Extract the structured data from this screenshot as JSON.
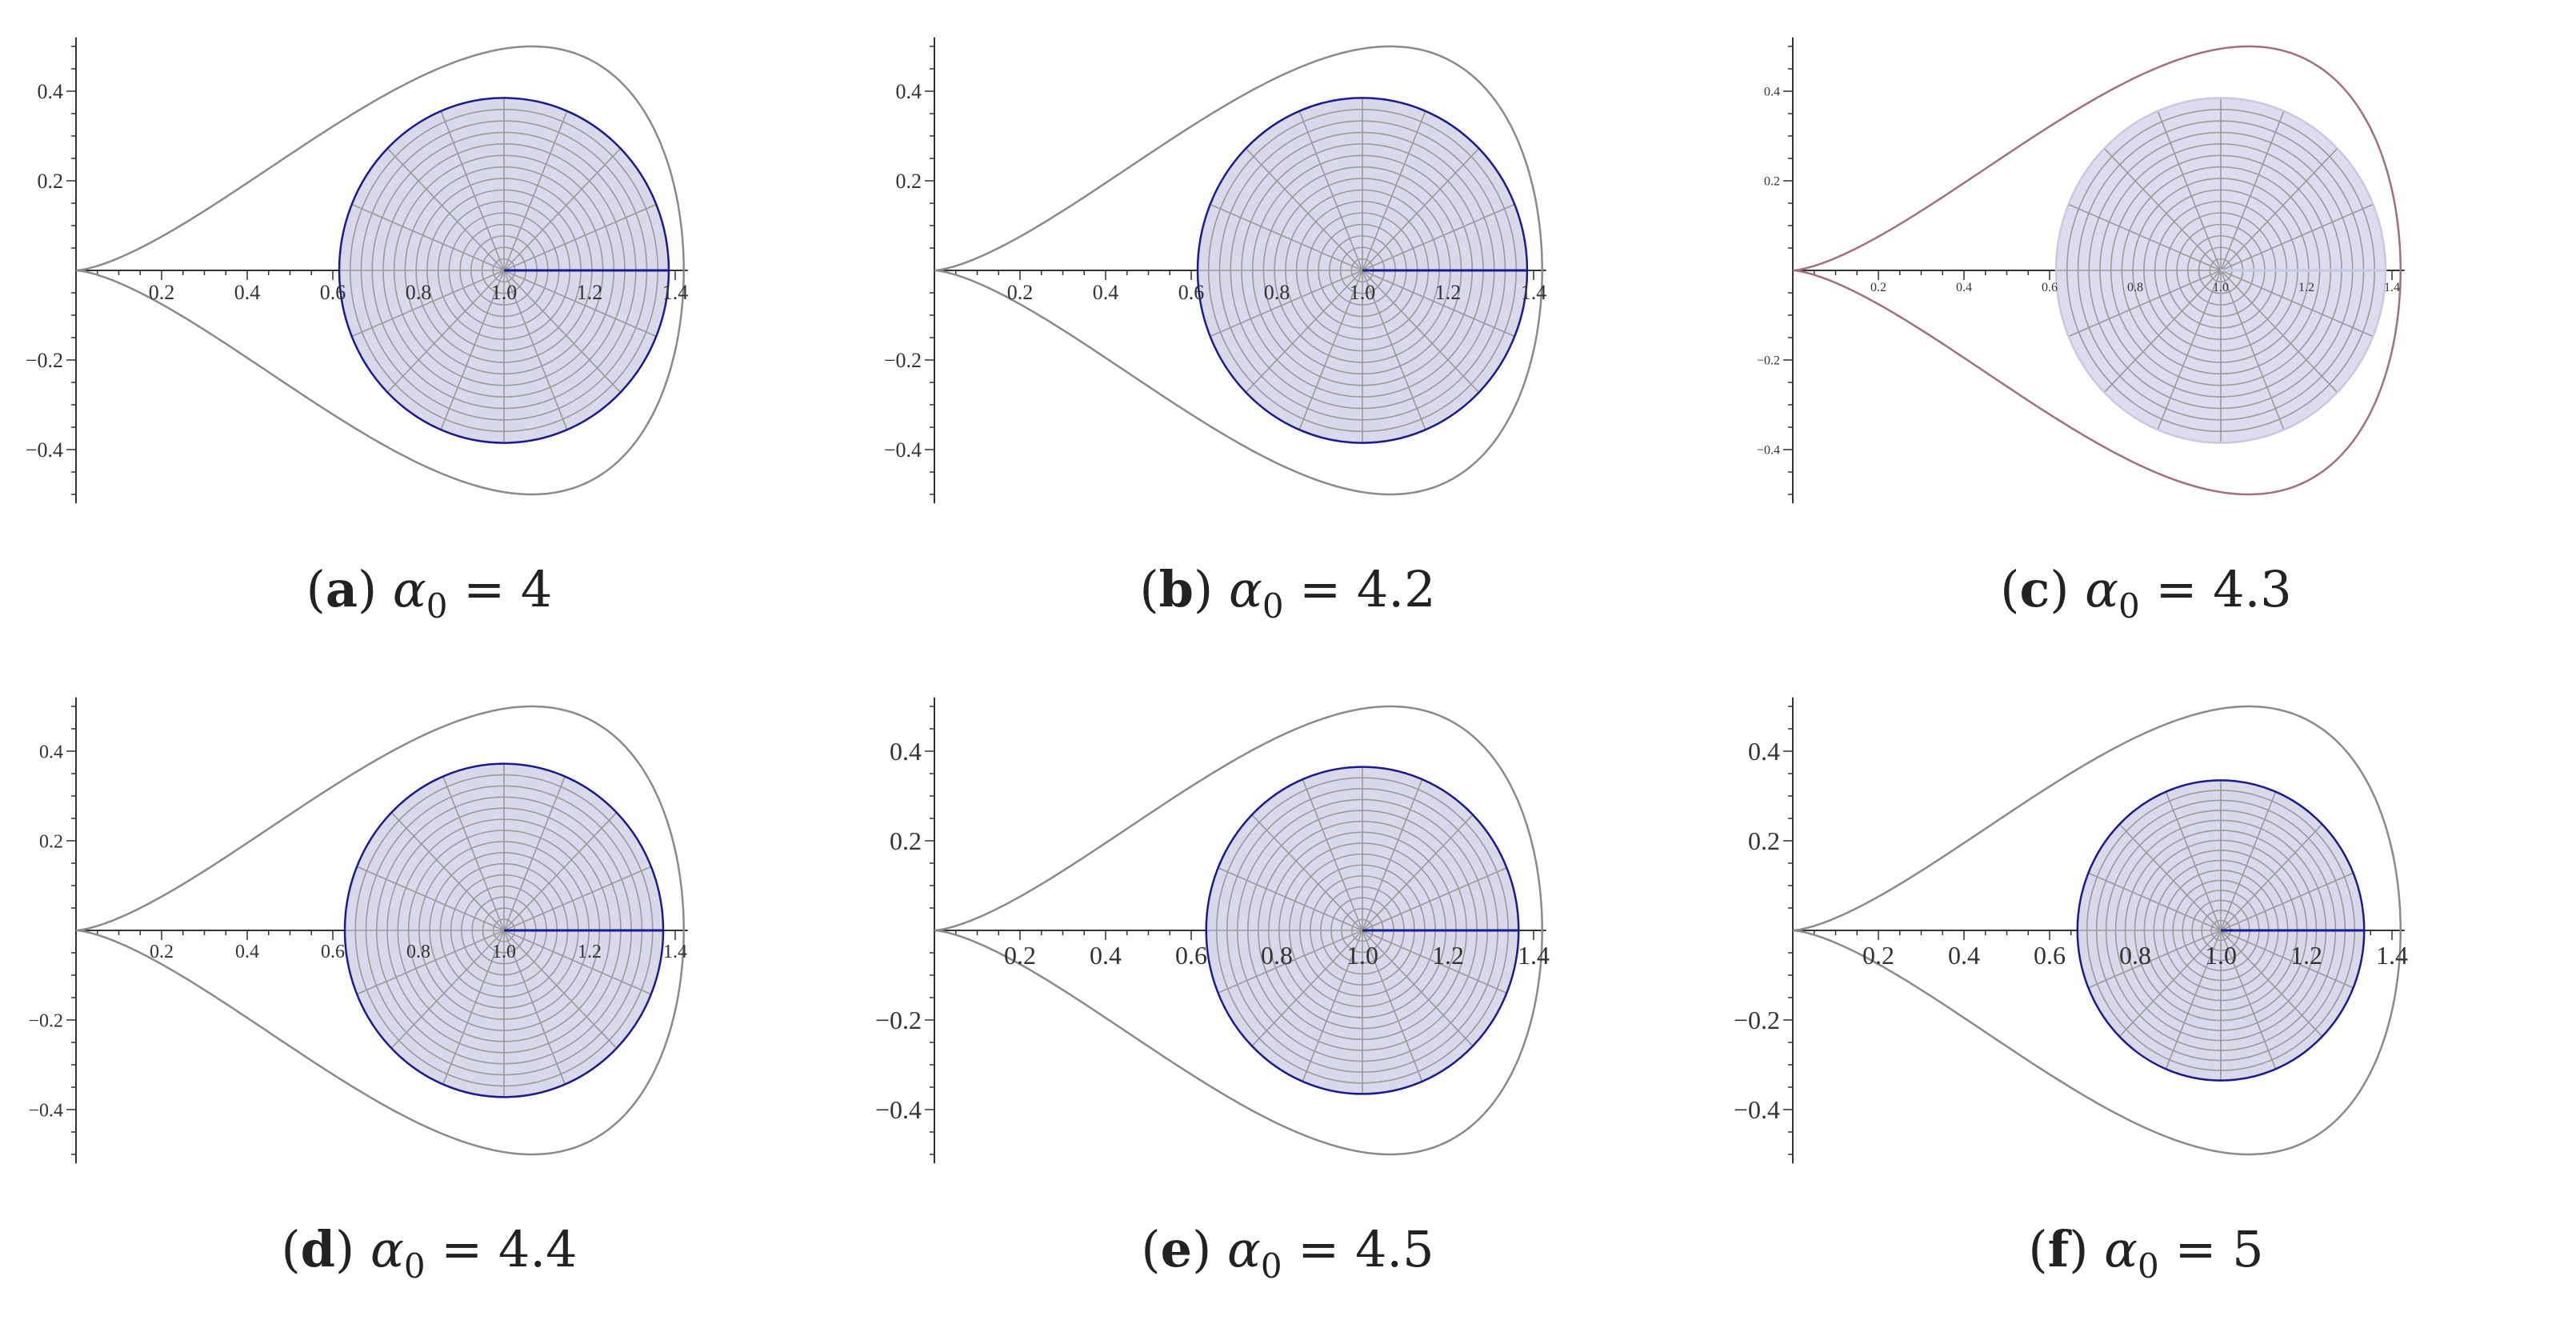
{
  "chart_data": [
    {
      "id": "a",
      "type": "line",
      "caption_tag": "a",
      "caption_param": "α",
      "caption_sub": "0",
      "caption_value": "4",
      "x_ticks": [
        "0.2",
        "0.4",
        "0.6",
        "0.8",
        "1.0",
        "1.2",
        "1.4"
      ],
      "y_ticks": [
        "0.4",
        "0.2",
        "−0.2",
        "−0.4"
      ],
      "xlim": [
        0,
        1.42
      ],
      "ylim": [
        -0.52,
        0.52
      ],
      "outer_curve": {
        "tip_x": 0,
        "max_x": 1.42,
        "max_y": 0.5,
        "max_y_at_x": 0.87
      },
      "disk": {
        "center": [
          1.0,
          0.0
        ],
        "radius": 0.385,
        "fill": "#d9d9ec",
        "edge": "#1b1b8f"
      },
      "tick_font_px": 26
    },
    {
      "id": "b",
      "type": "line",
      "caption_tag": "b",
      "caption_param": "α",
      "caption_sub": "0",
      "caption_value": "4.2",
      "x_ticks": [
        "0.2",
        "0.4",
        "0.6",
        "0.8",
        "1.0",
        "1.2",
        "1.4"
      ],
      "y_ticks": [
        "0.4",
        "0.2",
        "−0.2",
        "−0.4"
      ],
      "xlim": [
        0,
        1.42
      ],
      "ylim": [
        -0.52,
        0.52
      ],
      "outer_curve": {
        "tip_x": 0,
        "max_x": 1.42,
        "max_y": 0.5,
        "max_y_at_x": 0.87
      },
      "disk": {
        "center": [
          1.0,
          0.0
        ],
        "radius": 0.385,
        "fill": "#d9d9ec",
        "edge": "#1b1b8f"
      },
      "tick_font_px": 26
    },
    {
      "id": "c",
      "type": "line",
      "caption_tag": "c",
      "caption_param": "α",
      "caption_sub": "0",
      "caption_value": "4.3",
      "x_ticks": [
        "0.2",
        "0.4",
        "0.6",
        "0.8",
        "1.0",
        "1.2",
        "1.4"
      ],
      "y_ticks": [
        "0.4",
        "0.2",
        "−0.2",
        "−0.4"
      ],
      "xlim": [
        0,
        1.42
      ],
      "ylim": [
        -0.52,
        0.52
      ],
      "outer_curve": {
        "tip_x": 0,
        "max_x": 1.42,
        "max_y": 0.5,
        "max_y_at_x": 0.87,
        "color": "#a07080"
      },
      "disk": {
        "center": [
          1.0,
          0.0
        ],
        "radius": 0.385,
        "fill": "#dcdcee",
        "edge": "#c8c8e0"
      },
      "tick_font_px": 16
    },
    {
      "id": "d",
      "type": "line",
      "caption_tag": "d",
      "caption_param": "α",
      "caption_sub": "0",
      "caption_value": "4.4",
      "x_ticks": [
        "0.2",
        "0.4",
        "0.6",
        "0.8",
        "1.0",
        "1.2",
        "1.4"
      ],
      "y_ticks": [
        "0.4",
        "0.2",
        "−0.2",
        "−0.4"
      ],
      "xlim": [
        0,
        1.42
      ],
      "ylim": [
        -0.52,
        0.52
      ],
      "outer_curve": {
        "tip_x": 0,
        "max_x": 1.42,
        "max_y": 0.5,
        "max_y_at_x": 0.87
      },
      "disk": {
        "center": [
          1.0,
          0.0
        ],
        "radius": 0.372,
        "fill": "#d9d9ec",
        "edge": "#1b1b8f"
      },
      "tick_font_px": 24
    },
    {
      "id": "e",
      "type": "line",
      "caption_tag": "e",
      "caption_param": "α",
      "caption_sub": "0",
      "caption_value": "4.5",
      "x_ticks": [
        "0.2",
        "0.4",
        "0.6",
        "0.8",
        "1.0",
        "1.2",
        "1.4"
      ],
      "y_ticks": [
        "0.4",
        "0.2",
        "−0.2",
        "−0.4"
      ],
      "xlim": [
        0,
        1.42
      ],
      "ylim": [
        -0.52,
        0.52
      ],
      "outer_curve": {
        "tip_x": 0,
        "max_x": 1.42,
        "max_y": 0.5,
        "max_y_at_x": 0.87
      },
      "disk": {
        "center": [
          1.0,
          0.0
        ],
        "radius": 0.365,
        "fill": "#d9d9ec",
        "edge": "#1b1b8f"
      },
      "tick_font_px": 32
    },
    {
      "id": "f",
      "type": "line",
      "caption_tag": "f",
      "caption_param": "α",
      "caption_sub": "0",
      "caption_value": "5",
      "x_ticks": [
        "0.2",
        "0.4",
        "0.6",
        "0.8",
        "1.0",
        "1.2",
        "1.4"
      ],
      "y_ticks": [
        "0.4",
        "0.2",
        "−0.2",
        "−0.4"
      ],
      "xlim": [
        0,
        1.42
      ],
      "ylim": [
        -0.52,
        0.52
      ],
      "outer_curve": {
        "tip_x": 0,
        "max_x": 1.42,
        "max_y": 0.5,
        "max_y_at_x": 0.87
      },
      "disk": {
        "center": [
          1.0,
          0.0
        ],
        "radius": 0.335,
        "fill": "#d9d9ec",
        "edge": "#1b1b8f"
      },
      "tick_font_px": 32
    }
  ]
}
